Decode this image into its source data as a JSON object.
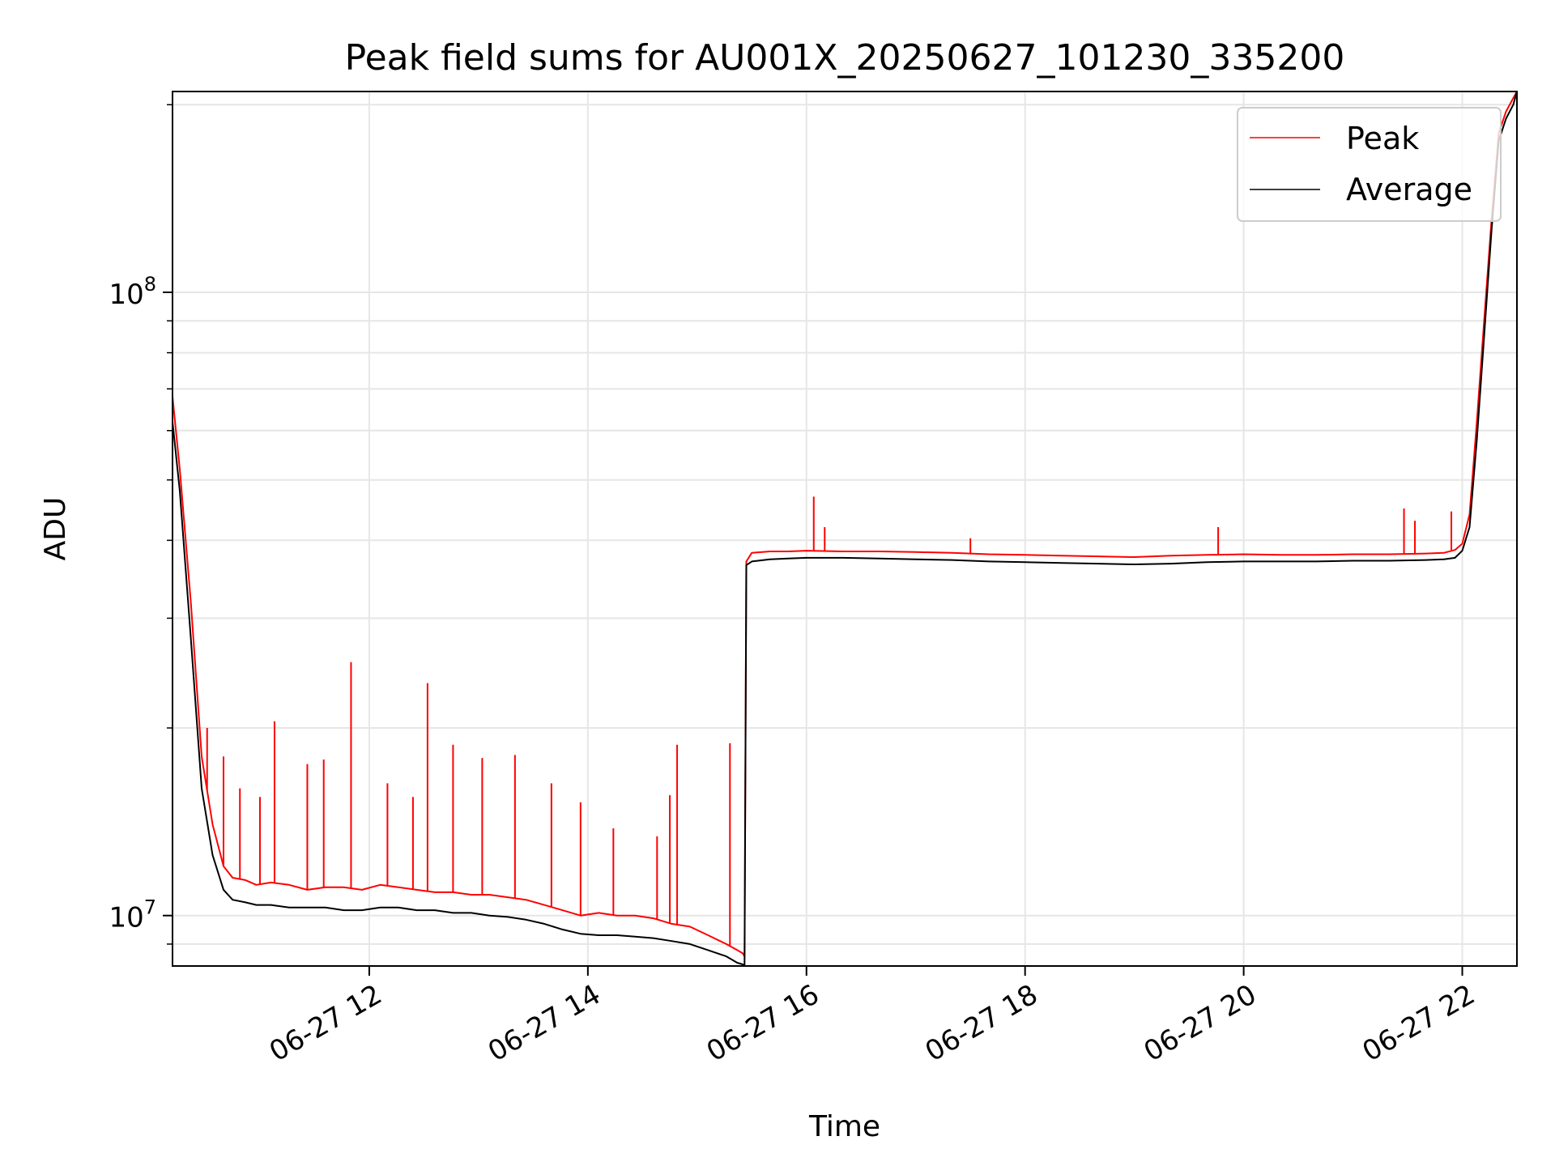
{
  "chart_data": {
    "type": "line",
    "title": "Peak field sums for AU001X_20250627_101230_335200",
    "xlabel": "Time",
    "ylabel": "ADU",
    "y_scale": "log",
    "grid": true,
    "legend_position": "top-right",
    "xlim": [
      "2025-06-27 10:12",
      "2025-06-27 22:30"
    ],
    "ylim": [
      8300000,
      210000000
    ],
    "x_ticks": [
      {
        "value": "2025-06-27 12:00",
        "label": "06-27 12"
      },
      {
        "value": "2025-06-27 14:00",
        "label": "06-27 14"
      },
      {
        "value": "2025-06-27 16:00",
        "label": "06-27 16"
      },
      {
        "value": "2025-06-27 18:00",
        "label": "06-27 18"
      },
      {
        "value": "2025-06-27 20:00",
        "label": "06-27 20"
      },
      {
        "value": "2025-06-27 22:00",
        "label": "06-27 22"
      }
    ],
    "y_ticks": [
      {
        "value": 10000000,
        "base": "10",
        "exp": "7"
      },
      {
        "value": 100000000,
        "base": "10",
        "exp": "8"
      }
    ],
    "series": [
      {
        "name": "Peak",
        "color": "#ff0000",
        "x": [
          "2025-06-27 10:12",
          "2025-06-27 10:16",
          "2025-06-27 10:22",
          "2025-06-27 10:28",
          "2025-06-27 10:34",
          "2025-06-27 10:40",
          "2025-06-27 10:45",
          "2025-06-27 10:52",
          "2025-06-27 10:58",
          "2025-06-27 11:06",
          "2025-06-27 11:16",
          "2025-06-27 11:26",
          "2025-06-27 11:36",
          "2025-06-27 11:46",
          "2025-06-27 11:56",
          "2025-06-27 12:06",
          "2025-06-27 12:16",
          "2025-06-27 12:26",
          "2025-06-27 12:36",
          "2025-06-27 12:46",
          "2025-06-27 12:56",
          "2025-06-27 13:06",
          "2025-06-27 13:16",
          "2025-06-27 13:26",
          "2025-06-27 13:36",
          "2025-06-27 13:46",
          "2025-06-27 13:56",
          "2025-06-27 14:06",
          "2025-06-27 14:16",
          "2025-06-27 14:26",
          "2025-06-27 14:36",
          "2025-06-27 14:46",
          "2025-06-27 14:56",
          "2025-06-27 15:06",
          "2025-06-27 15:16",
          "2025-06-27 15:22",
          "2025-06-27 15:25",
          "2025-06-27 15:26",
          "2025-06-27 15:27",
          "2025-06-27 15:30",
          "2025-06-27 15:40",
          "2025-06-27 15:50",
          "2025-06-27 16:00",
          "2025-06-27 16:20",
          "2025-06-27 16:40",
          "2025-06-27 17:00",
          "2025-06-27 17:20",
          "2025-06-27 17:40",
          "2025-06-27 18:00",
          "2025-06-27 18:20",
          "2025-06-27 18:40",
          "2025-06-27 19:00",
          "2025-06-27 19:20",
          "2025-06-27 19:40",
          "2025-06-27 20:00",
          "2025-06-27 20:20",
          "2025-06-27 20:40",
          "2025-06-27 21:00",
          "2025-06-27 21:20",
          "2025-06-27 21:40",
          "2025-06-27 21:50",
          "2025-06-27 21:56",
          "2025-06-27 22:00",
          "2025-06-27 22:04",
          "2025-06-27 22:08",
          "2025-06-27 22:12",
          "2025-06-27 22:16",
          "2025-06-27 22:20",
          "2025-06-27 22:24",
          "2025-06-27 22:28",
          "2025-06-27 22:30"
        ],
        "y": [
          68000000,
          52000000,
          32000000,
          18000000,
          14000000,
          12000000,
          11500000,
          11400000,
          11200000,
          11300000,
          11200000,
          11000000,
          11100000,
          11100000,
          11000000,
          11200000,
          11100000,
          11000000,
          10900000,
          10900000,
          10800000,
          10800000,
          10700000,
          10600000,
          10400000,
          10200000,
          10000000,
          10100000,
          10000000,
          10000000,
          9900000,
          9700000,
          9600000,
          9300000,
          9000000,
          8800000,
          8700000,
          8600000,
          37000000,
          38200000,
          38400000,
          38400000,
          38500000,
          38400000,
          38400000,
          38300000,
          38200000,
          38000000,
          37900000,
          37800000,
          37700000,
          37600000,
          37800000,
          37900000,
          38000000,
          37900000,
          37900000,
          38000000,
          38000000,
          38100000,
          38200000,
          38600000,
          39500000,
          44000000,
          62000000,
          90000000,
          130000000,
          180000000,
          195000000,
          205000000,
          210000000
        ]
      },
      {
        "name": "Average",
        "color": "#000000",
        "x": [
          "2025-06-27 10:12",
          "2025-06-27 10:16",
          "2025-06-27 10:22",
          "2025-06-27 10:28",
          "2025-06-27 10:34",
          "2025-06-27 10:40",
          "2025-06-27 10:45",
          "2025-06-27 10:52",
          "2025-06-27 10:58",
          "2025-06-27 11:06",
          "2025-06-27 11:16",
          "2025-06-27 11:26",
          "2025-06-27 11:36",
          "2025-06-27 11:46",
          "2025-06-27 11:56",
          "2025-06-27 12:06",
          "2025-06-27 12:16",
          "2025-06-27 12:26",
          "2025-06-27 12:36",
          "2025-06-27 12:46",
          "2025-06-27 12:56",
          "2025-06-27 13:06",
          "2025-06-27 13:16",
          "2025-06-27 13:26",
          "2025-06-27 13:36",
          "2025-06-27 13:46",
          "2025-06-27 13:56",
          "2025-06-27 14:06",
          "2025-06-27 14:16",
          "2025-06-27 14:26",
          "2025-06-27 14:36",
          "2025-06-27 14:46",
          "2025-06-27 14:56",
          "2025-06-27 15:06",
          "2025-06-27 15:16",
          "2025-06-27 15:22",
          "2025-06-27 15:25",
          "2025-06-27 15:26",
          "2025-06-27 15:27",
          "2025-06-27 15:30",
          "2025-06-27 15:40",
          "2025-06-27 15:50",
          "2025-06-27 16:00",
          "2025-06-27 16:20",
          "2025-06-27 16:40",
          "2025-06-27 17:00",
          "2025-06-27 17:20",
          "2025-06-27 17:40",
          "2025-06-27 18:00",
          "2025-06-27 18:20",
          "2025-06-27 18:40",
          "2025-06-27 19:00",
          "2025-06-27 19:20",
          "2025-06-27 19:40",
          "2025-06-27 20:00",
          "2025-06-27 20:20",
          "2025-06-27 20:40",
          "2025-06-27 21:00",
          "2025-06-27 21:20",
          "2025-06-27 21:40",
          "2025-06-27 21:50",
          "2025-06-27 21:56",
          "2025-06-27 22:00",
          "2025-06-27 22:04",
          "2025-06-27 22:08",
          "2025-06-27 22:12",
          "2025-06-27 22:16",
          "2025-06-27 22:20",
          "2025-06-27 22:24",
          "2025-06-27 22:28",
          "2025-06-27 22:30"
        ],
        "y": [
          62000000,
          48000000,
          28000000,
          16000000,
          12500000,
          11000000,
          10600000,
          10500000,
          10400000,
          10400000,
          10300000,
          10300000,
          10300000,
          10200000,
          10200000,
          10300000,
          10300000,
          10200000,
          10200000,
          10100000,
          10100000,
          10000000,
          9950000,
          9850000,
          9700000,
          9500000,
          9350000,
          9300000,
          9300000,
          9250000,
          9200000,
          9100000,
          9000000,
          8800000,
          8600000,
          8400000,
          8350000,
          8300000,
          36500000,
          37000000,
          37300000,
          37400000,
          37500000,
          37500000,
          37400000,
          37300000,
          37200000,
          37000000,
          36900000,
          36800000,
          36700000,
          36600000,
          36700000,
          36900000,
          37000000,
          37000000,
          37000000,
          37100000,
          37100000,
          37200000,
          37300000,
          37500000,
          38500000,
          42000000,
          58000000,
          85000000,
          125000000,
          175000000,
          190000000,
          200000000,
          210000000
        ]
      }
    ],
    "peak_spikes": [
      {
        "x": "2025-06-27 10:31",
        "y": 20000000
      },
      {
        "x": "2025-06-27 10:40",
        "y": 18000000
      },
      {
        "x": "2025-06-27 10:49",
        "y": 16000000
      },
      {
        "x": "2025-06-27 11:00",
        "y": 15500000
      },
      {
        "x": "2025-06-27 11:08",
        "y": 20500000
      },
      {
        "x": "2025-06-27 11:26",
        "y": 17500000
      },
      {
        "x": "2025-06-27 11:35",
        "y": 17800000
      },
      {
        "x": "2025-06-27 11:50",
        "y": 25500000
      },
      {
        "x": "2025-06-27 12:10",
        "y": 16300000
      },
      {
        "x": "2025-06-27 12:24",
        "y": 15500000
      },
      {
        "x": "2025-06-27 12:32",
        "y": 23600000
      },
      {
        "x": "2025-06-27 12:46",
        "y": 18800000
      },
      {
        "x": "2025-06-27 13:02",
        "y": 17900000
      },
      {
        "x": "2025-06-27 13:20",
        "y": 18100000
      },
      {
        "x": "2025-06-27 13:40",
        "y": 16300000
      },
      {
        "x": "2025-06-27 13:56",
        "y": 15200000
      },
      {
        "x": "2025-06-27 14:14",
        "y": 13800000
      },
      {
        "x": "2025-06-27 14:38",
        "y": 13400000
      },
      {
        "x": "2025-06-27 14:45",
        "y": 15600000
      },
      {
        "x": "2025-06-27 14:49",
        "y": 18800000
      },
      {
        "x": "2025-06-27 15:18",
        "y": 18900000
      },
      {
        "x": "2025-06-27 16:04",
        "y": 47000000
      },
      {
        "x": "2025-06-27 16:10",
        "y": 42000000
      },
      {
        "x": "2025-06-27 17:30",
        "y": 40300000
      },
      {
        "x": "2025-06-27 19:46",
        "y": 42000000
      },
      {
        "x": "2025-06-27 21:28",
        "y": 45000000
      },
      {
        "x": "2025-06-27 21:34",
        "y": 43000000
      },
      {
        "x": "2025-06-27 21:54",
        "y": 44500000
      }
    ]
  }
}
